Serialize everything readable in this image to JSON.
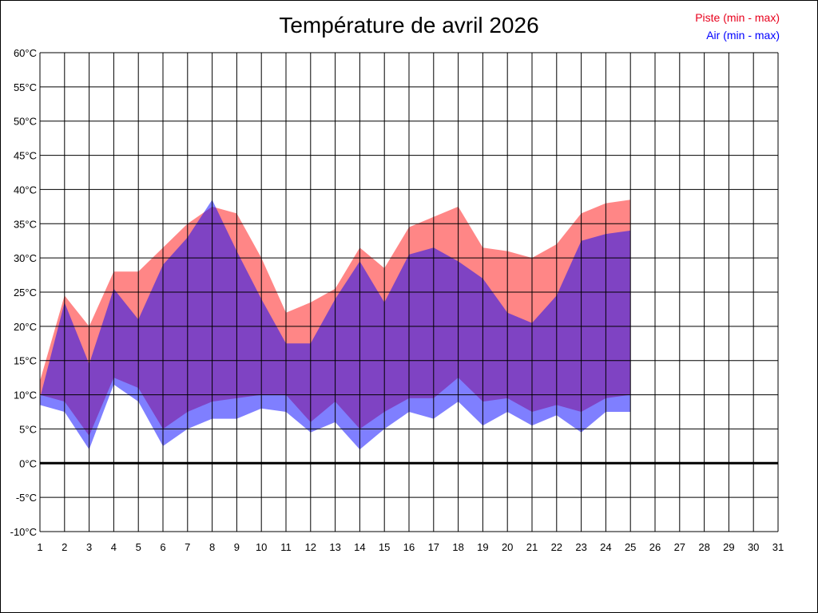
{
  "chart_data": {
    "type": "area",
    "title": "Température de avril 2026",
    "x": [
      1,
      2,
      3,
      4,
      5,
      6,
      7,
      8,
      9,
      10,
      11,
      12,
      13,
      14,
      15,
      16,
      17,
      18,
      19,
      20,
      21,
      22,
      23,
      24,
      25,
      26,
      27,
      28,
      29,
      30,
      31
    ],
    "x_tick_labels": [
      "1",
      "2",
      "3",
      "4",
      "5",
      "6",
      "7",
      "8",
      "9",
      "10",
      "11",
      "12",
      "13",
      "14",
      "15",
      "16",
      "17",
      "18",
      "19",
      "20",
      "21",
      "22",
      "23",
      "24",
      "25",
      "26",
      "27",
      "28",
      "29",
      "30",
      "31"
    ],
    "y_tick_labels": [
      "60°C",
      "55°C",
      "50°C",
      "45°C",
      "40°C",
      "35°C",
      "30°C",
      "25°C",
      "20°C",
      "15°C",
      "10°C",
      "5°C",
      "0°C",
      "-5°C",
      "-10°C"
    ],
    "ylim": [
      -10,
      60
    ],
    "xlim": [
      1,
      31
    ],
    "grid": true,
    "legend_position": "top-right",
    "series": [
      {
        "name": "Piste (min - max)",
        "color": "#ff7f7f",
        "min": [
          10,
          9,
          4,
          12.5,
          11,
          5,
          7.5,
          9,
          9.5,
          10,
          10,
          6,
          9,
          5,
          7.5,
          9.5,
          9.5,
          12.5,
          9,
          9.5,
          7.5,
          8.5,
          7.5,
          9.5,
          10
        ],
        "max": [
          12,
          24.5,
          20,
          28,
          28,
          31.5,
          35,
          37.5,
          36.5,
          30,
          22,
          23.5,
          25.5,
          31.5,
          28.5,
          34.5,
          36,
          37.5,
          31.5,
          31,
          30,
          32,
          36.5,
          38,
          38.5
        ]
      },
      {
        "name": "Air (min - max)",
        "color": "#0000ff",
        "min": [
          8.5,
          7.5,
          2,
          11.5,
          9,
          2.5,
          5,
          6.5,
          6.5,
          8,
          7.5,
          4.5,
          6,
          2,
          5,
          7.5,
          6.5,
          9,
          5.5,
          7.5,
          5.5,
          7,
          4.5,
          7.5,
          7.5
        ],
        "max": [
          9.5,
          23.5,
          14.5,
          25.5,
          21,
          29,
          33,
          38.5,
          31,
          24,
          17.5,
          17.5,
          24,
          29.5,
          23.5,
          30.5,
          31.5,
          29.5,
          27,
          22,
          20.5,
          24.5,
          32.5,
          33.5,
          34
        ]
      }
    ]
  }
}
